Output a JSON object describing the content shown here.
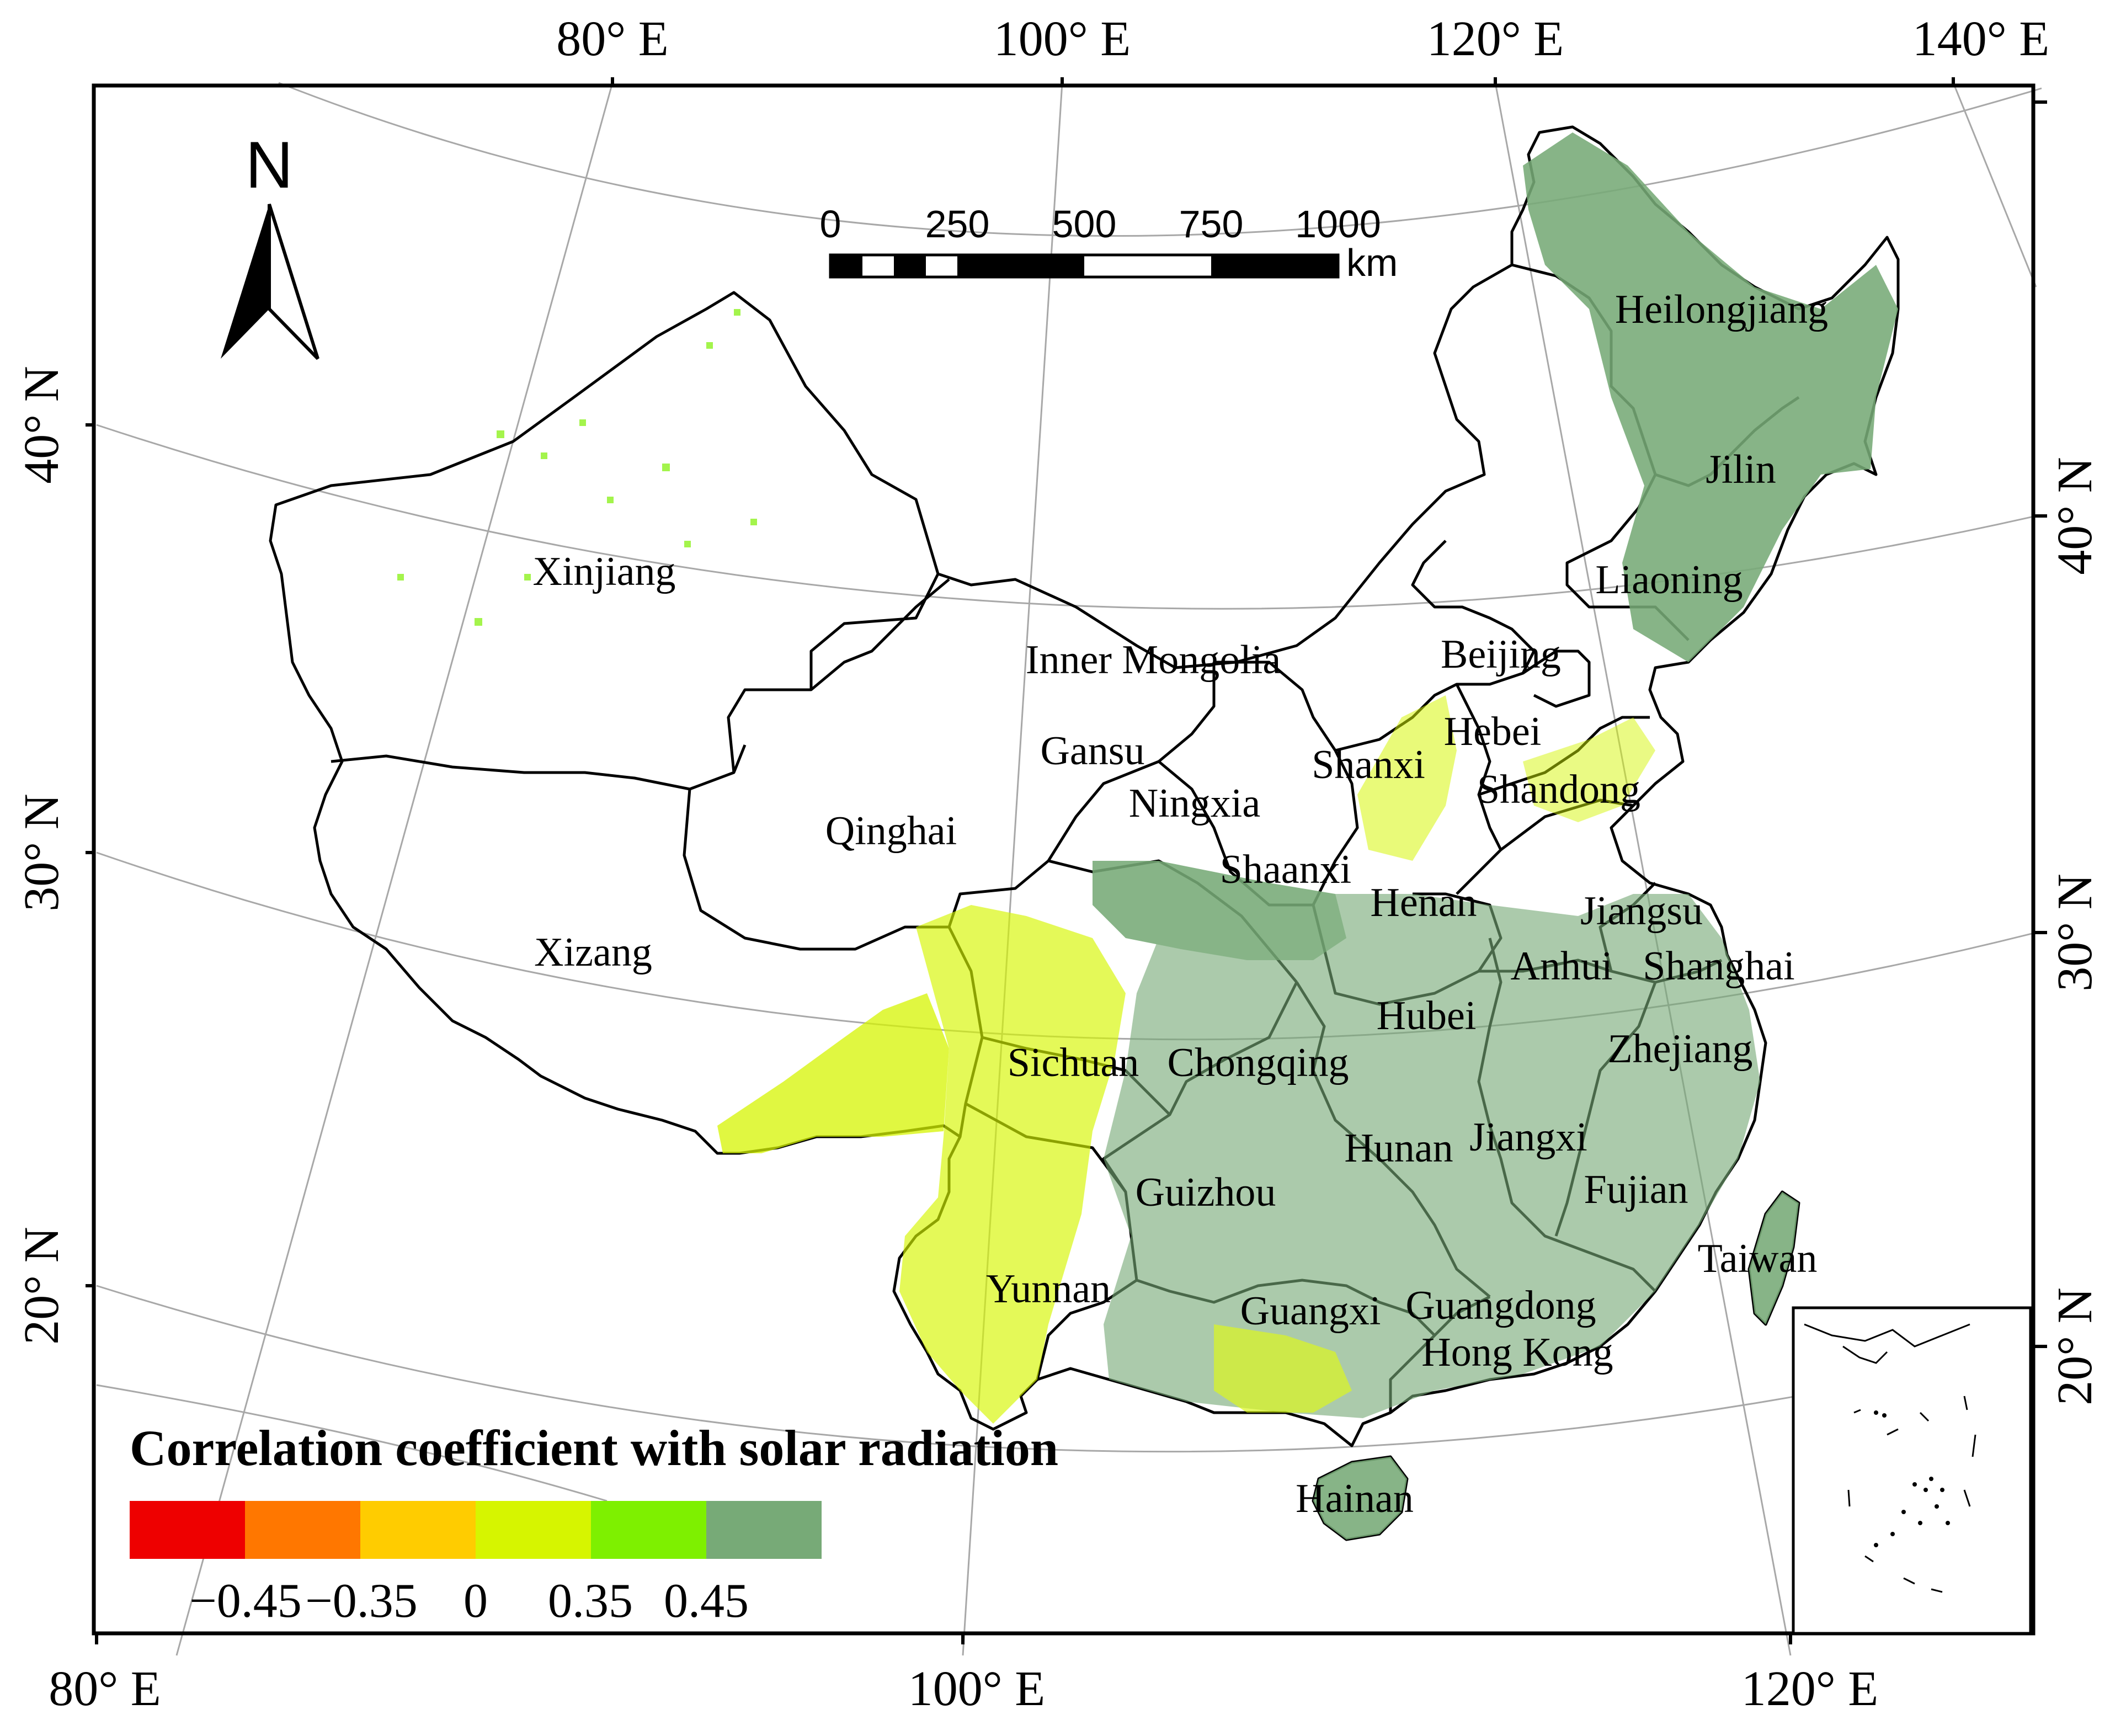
{
  "legend": {
    "title": "Correlation coefficient with solar radiation",
    "classes": [
      {
        "color": "#ee0000"
      },
      {
        "color": "#ff7700"
      },
      {
        "color": "#ffcc00"
      },
      {
        "color": "#d6f500"
      },
      {
        "color": "#7ef000"
      },
      {
        "color": "#77aa77"
      }
    ],
    "tick_labels": [
      "−0.45",
      "−0.35",
      "0",
      "0.35",
      "0.45"
    ]
  },
  "axes": {
    "top": [
      "80° E",
      "100° E",
      "120° E",
      "140° E"
    ],
    "bottom": [
      "80° E",
      "100° E",
      "120° E"
    ],
    "left": [
      "40° N",
      "30° N",
      "20° N"
    ],
    "right": [
      "40° N",
      "30° N",
      "20° N"
    ]
  },
  "north_arrow": {
    "label": "N"
  },
  "scale_bar": {
    "ticks": [
      "0",
      "250",
      "500",
      "750",
      "1000"
    ],
    "unit": "km"
  },
  "provinces": [
    "Heilongjiang",
    "Jilin",
    "Liaoning",
    "Beijing",
    "Inner Mongolia",
    "Xinjiang",
    "Gansu",
    "Hebei",
    "Shanxi",
    "Shandong",
    "Ningxia",
    "Qinghai",
    "Shaanxi",
    "Henan",
    "Jiangsu",
    "Xizang",
    "Anhui",
    "Shanghai",
    "Hubei",
    "Sichuan",
    "Chongqing",
    "Zhejiang",
    "Hunan",
    "Jiangxi",
    "Guizhou",
    "Fujian",
    "Taiwan",
    "Yunnan",
    "Guangxi",
    "Guangdong",
    "Hong Kong",
    "Hainan"
  ],
  "colors": {
    "frame": "#000000",
    "graticule": "#9a9a9a",
    "boundary": "#000000"
  }
}
